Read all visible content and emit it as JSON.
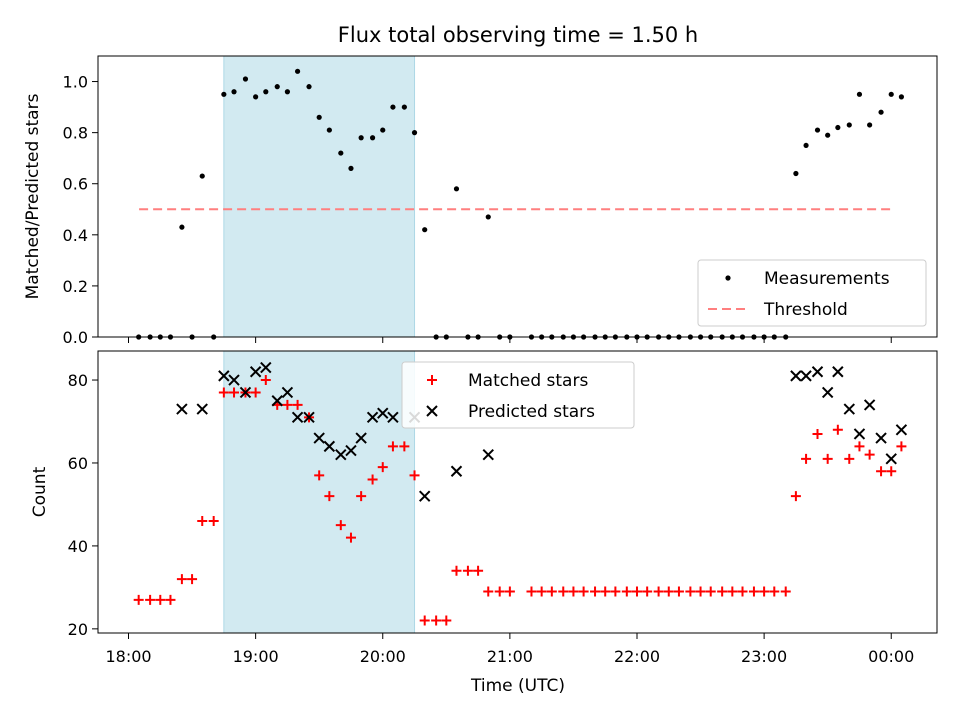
{
  "title": "Flux total observing time = 1.50 h",
  "colors": {
    "shade": "#add8e6",
    "measurement": "#000000",
    "threshold": "#ff7f7f",
    "matched": "#ff0000",
    "predicted": "#000000"
  },
  "xlabel": "Time (UTC)",
  "x_ticks": [
    "18:00",
    "19:00",
    "20:00",
    "21:00",
    "22:00",
    "23:00",
    "00:00"
  ],
  "chart_data": [
    {
      "type": "scatter",
      "ylabel": "Matched/Predicted stars",
      "ylim": [
        0,
        1.1
      ],
      "y_ticks": [
        "0.0",
        "0.2",
        "0.4",
        "0.6",
        "0.8",
        "1.0"
      ],
      "x_unit": "hours after 18:00 UTC",
      "shaded_interval": [
        "18:45",
        "20:15"
      ],
      "legend": {
        "location": "lower right",
        "entries": [
          "Measurements",
          "Threshold"
        ]
      },
      "threshold": {
        "name": "Threshold",
        "value": 0.5,
        "x_range": [
          "18:05",
          "00:00"
        ]
      },
      "series": [
        {
          "name": "Measurements",
          "points": [
            [
              0.08,
              0
            ],
            [
              0.17,
              0
            ],
            [
              0.25,
              0
            ],
            [
              0.33,
              0
            ],
            [
              0.42,
              0.43
            ],
            [
              0.5,
              0
            ],
            [
              0.58,
              0.63
            ],
            [
              0.67,
              0
            ],
            [
              0.75,
              0.95
            ],
            [
              0.83,
              0.96
            ],
            [
              0.92,
              1.01
            ],
            [
              1.0,
              0.94
            ],
            [
              1.08,
              0.96
            ],
            [
              1.17,
              0.98
            ],
            [
              1.25,
              0.96
            ],
            [
              1.33,
              1.04
            ],
            [
              1.42,
              0.98
            ],
            [
              1.5,
              0.86
            ],
            [
              1.58,
              0.81
            ],
            [
              1.67,
              0.72
            ],
            [
              1.75,
              0.66
            ],
            [
              1.83,
              0.78
            ],
            [
              1.92,
              0.78
            ],
            [
              2.0,
              0.81
            ],
            [
              2.08,
              0.9
            ],
            [
              2.17,
              0.9
            ],
            [
              2.25,
              0.8
            ],
            [
              2.33,
              0.42
            ],
            [
              2.42,
              0
            ],
            [
              2.5,
              0
            ],
            [
              2.58,
              0.58
            ],
            [
              2.67,
              0
            ],
            [
              2.75,
              0
            ],
            [
              2.83,
              0.47
            ],
            [
              2.92,
              0
            ],
            [
              3.0,
              0
            ],
            [
              3.17,
              0
            ],
            [
              3.25,
              0
            ],
            [
              3.33,
              0
            ],
            [
              3.42,
              0
            ],
            [
              3.5,
              0
            ],
            [
              3.58,
              0
            ],
            [
              3.67,
              0
            ],
            [
              3.75,
              0
            ],
            [
              3.83,
              0
            ],
            [
              3.92,
              0
            ],
            [
              4.0,
              0
            ],
            [
              4.08,
              0
            ],
            [
              4.17,
              0
            ],
            [
              4.25,
              0
            ],
            [
              4.33,
              0
            ],
            [
              4.42,
              0
            ],
            [
              4.5,
              0
            ],
            [
              4.58,
              0
            ],
            [
              4.67,
              0
            ],
            [
              4.75,
              0
            ],
            [
              4.83,
              0
            ],
            [
              4.92,
              0
            ],
            [
              5.0,
              0
            ],
            [
              5.08,
              0
            ],
            [
              5.17,
              0
            ],
            [
              5.25,
              0.64
            ],
            [
              5.33,
              0.75
            ],
            [
              5.42,
              0.81
            ],
            [
              5.5,
              0.79
            ],
            [
              5.58,
              0.82
            ],
            [
              5.67,
              0.83
            ],
            [
              5.75,
              0.95
            ],
            [
              5.83,
              0.83
            ],
            [
              5.92,
              0.88
            ],
            [
              6.0,
              0.95
            ],
            [
              6.08,
              0.94
            ]
          ]
        }
      ]
    },
    {
      "type": "scatter",
      "ylabel": "Count",
      "ylim": [
        19,
        87
      ],
      "y_ticks": [
        "20",
        "40",
        "60",
        "80"
      ],
      "x_unit": "hours after 18:00 UTC",
      "shaded_interval": [
        "18:45",
        "20:15"
      ],
      "legend": {
        "location": "upper center",
        "entries": [
          "Matched stars",
          "Predicted stars"
        ]
      },
      "series": [
        {
          "name": "Matched stars",
          "points": [
            [
              0.08,
              27
            ],
            [
              0.17,
              27
            ],
            [
              0.25,
              27
            ],
            [
              0.33,
              27
            ],
            [
              0.42,
              32
            ],
            [
              0.5,
              32
            ],
            [
              0.58,
              46
            ],
            [
              0.67,
              46
            ],
            [
              0.75,
              77
            ],
            [
              0.83,
              77
            ],
            [
              0.92,
              77
            ],
            [
              1.0,
              77
            ],
            [
              1.08,
              80
            ],
            [
              1.17,
              74
            ],
            [
              1.25,
              74
            ],
            [
              1.33,
              74
            ],
            [
              1.42,
              71
            ],
            [
              1.5,
              57
            ],
            [
              1.58,
              52
            ],
            [
              1.67,
              45
            ],
            [
              1.75,
              42
            ],
            [
              1.83,
              52
            ],
            [
              1.92,
              56
            ],
            [
              2.0,
              59
            ],
            [
              2.08,
              64
            ],
            [
              2.17,
              64
            ],
            [
              2.25,
              57
            ],
            [
              2.33,
              22
            ],
            [
              2.42,
              22
            ],
            [
              2.5,
              22
            ],
            [
              2.58,
              34
            ],
            [
              2.67,
              34
            ],
            [
              2.75,
              34
            ],
            [
              2.83,
              29
            ],
            [
              2.92,
              29
            ],
            [
              3.0,
              29
            ],
            [
              3.17,
              29
            ],
            [
              3.25,
              29
            ],
            [
              3.33,
              29
            ],
            [
              3.42,
              29
            ],
            [
              3.5,
              29
            ],
            [
              3.58,
              29
            ],
            [
              3.67,
              29
            ],
            [
              3.75,
              29
            ],
            [
              3.83,
              29
            ],
            [
              3.92,
              29
            ],
            [
              4.0,
              29
            ],
            [
              4.08,
              29
            ],
            [
              4.17,
              29
            ],
            [
              4.25,
              29
            ],
            [
              4.33,
              29
            ],
            [
              4.42,
              29
            ],
            [
              4.5,
              29
            ],
            [
              4.58,
              29
            ],
            [
              4.67,
              29
            ],
            [
              4.75,
              29
            ],
            [
              4.83,
              29
            ],
            [
              4.92,
              29
            ],
            [
              5.0,
              29
            ],
            [
              5.08,
              29
            ],
            [
              5.17,
              29
            ],
            [
              5.25,
              52
            ],
            [
              5.33,
              61
            ],
            [
              5.42,
              67
            ],
            [
              5.5,
              61
            ],
            [
              5.58,
              68
            ],
            [
              5.67,
              61
            ],
            [
              5.75,
              64
            ],
            [
              5.83,
              62
            ],
            [
              5.92,
              58
            ],
            [
              6.0,
              58
            ],
            [
              6.08,
              64
            ]
          ]
        },
        {
          "name": "Predicted stars",
          "points": [
            [
              0.42,
              73
            ],
            [
              0.58,
              73
            ],
            [
              0.75,
              81
            ],
            [
              0.83,
              80
            ],
            [
              0.92,
              77
            ],
            [
              1.0,
              82
            ],
            [
              1.08,
              83
            ],
            [
              1.17,
              75
            ],
            [
              1.25,
              77
            ],
            [
              1.33,
              71
            ],
            [
              1.42,
              71
            ],
            [
              1.5,
              66
            ],
            [
              1.58,
              64
            ],
            [
              1.67,
              62
            ],
            [
              1.75,
              63
            ],
            [
              1.83,
              66
            ],
            [
              1.92,
              71
            ],
            [
              2.0,
              72
            ],
            [
              2.08,
              71
            ],
            [
              2.25,
              71
            ],
            [
              2.33,
              52
            ],
            [
              2.58,
              58
            ],
            [
              2.83,
              62
            ],
            [
              5.25,
              81
            ],
            [
              5.33,
              81
            ],
            [
              5.42,
              82
            ],
            [
              5.5,
              77
            ],
            [
              5.58,
              82
            ],
            [
              5.67,
              73
            ],
            [
              5.75,
              67
            ],
            [
              5.83,
              74
            ],
            [
              5.92,
              66
            ],
            [
              6.0,
              61
            ],
            [
              6.08,
              68
            ]
          ]
        }
      ]
    }
  ]
}
